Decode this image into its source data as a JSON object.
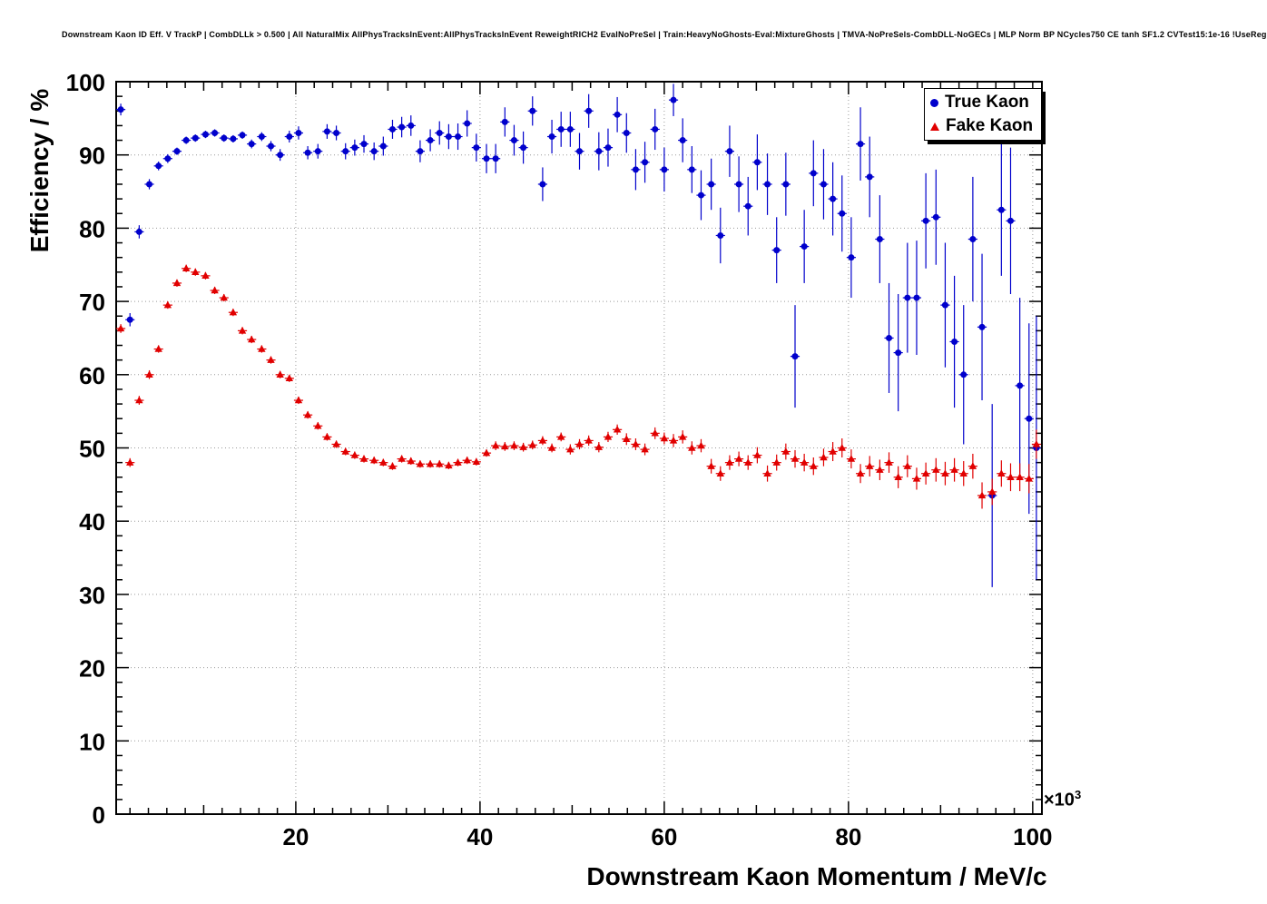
{
  "header": {
    "title": "Downstream Kaon ID Eff. V TrackP | CombDLLk > 0.500 | All NaturalMix AllPhysTracksInEvent:AllPhysTracksInEvent ReweightRICH2 EvalNoPreSel | Train:HeavyNoGhosts-Eval:MixtureGhosts | TMVA-NoPreSels-CombDLL-NoGECs | MLP Norm BP NCycles750 CE tanh SF1.2 CVTest15:1e-16 !UseReg"
  },
  "chart_data": {
    "type": "scatter",
    "xlabel": "Downstream Kaon Momentum / MeV/c",
    "ylabel": "Efficiency / %",
    "x_scale_base": "×10",
    "x_scale_exp": "3",
    "xlim": [
      0.5,
      101
    ],
    "ylim": [
      0,
      100
    ],
    "xticks": [
      20,
      40,
      60,
      80,
      100
    ],
    "yticks": [
      0,
      10,
      20,
      30,
      40,
      50,
      60,
      70,
      80,
      90,
      100
    ],
    "x_minor_step": 2,
    "y_minor_step": 2,
    "grid": true,
    "legend": {
      "position": "top-right",
      "entries": [
        {
          "label": "True Kaon",
          "marker": "circle",
          "color": "#0000cc"
        },
        {
          "label": "Fake Kaon",
          "marker": "triangle",
          "color": "#e10000"
        }
      ]
    },
    "series": [
      {
        "name": "True Kaon",
        "marker": "circle",
        "color": "#0000cc",
        "xerr": 0.5,
        "points": [
          [
            1.0,
            96.2,
            0.8
          ],
          [
            2.0,
            67.5,
            0.9
          ],
          [
            3.0,
            79.5,
            0.9
          ],
          [
            4.1,
            86.0,
            0.7
          ],
          [
            5.1,
            88.5,
            0.6
          ],
          [
            6.1,
            89.5,
            0.6
          ],
          [
            7.1,
            90.5,
            0.5
          ],
          [
            8.1,
            92.0,
            0.5
          ],
          [
            9.1,
            92.3,
            0.5
          ],
          [
            10.2,
            92.8,
            0.5
          ],
          [
            11.2,
            93.0,
            0.5
          ],
          [
            12.2,
            92.3,
            0.5
          ],
          [
            13.2,
            92.2,
            0.5
          ],
          [
            14.2,
            92.7,
            0.5
          ],
          [
            15.2,
            91.5,
            0.6
          ],
          [
            16.3,
            92.5,
            0.6
          ],
          [
            17.3,
            91.2,
            0.7
          ],
          [
            18.3,
            90.0,
            0.8
          ],
          [
            19.3,
            92.5,
            0.8
          ],
          [
            20.3,
            93.0,
            0.9
          ],
          [
            21.3,
            90.3,
            0.9
          ],
          [
            22.4,
            90.5,
            1.0
          ],
          [
            23.4,
            93.2,
            1.0
          ],
          [
            24.4,
            93.0,
            1.0
          ],
          [
            25.4,
            90.5,
            1.1
          ],
          [
            26.4,
            91.0,
            1.1
          ],
          [
            27.4,
            91.5,
            1.2
          ],
          [
            28.5,
            90.5,
            1.2
          ],
          [
            29.5,
            91.2,
            1.3
          ],
          [
            30.5,
            93.5,
            1.3
          ],
          [
            31.5,
            93.8,
            1.4
          ],
          [
            32.5,
            94.0,
            1.4
          ],
          [
            33.5,
            90.5,
            1.5
          ],
          [
            34.6,
            92.0,
            1.5
          ],
          [
            35.6,
            93.0,
            1.6
          ],
          [
            36.6,
            92.5,
            1.7
          ],
          [
            37.6,
            92.5,
            1.8
          ],
          [
            38.6,
            94.3,
            1.8
          ],
          [
            39.6,
            91.0,
            1.9
          ],
          [
            40.7,
            89.5,
            2.0
          ],
          [
            41.7,
            89.5,
            2.0
          ],
          [
            42.7,
            94.5,
            2.0
          ],
          [
            43.7,
            92.0,
            2.1
          ],
          [
            44.7,
            91.0,
            2.2
          ],
          [
            45.7,
            96.0,
            2.0
          ],
          [
            46.8,
            86.0,
            2.3
          ],
          [
            47.8,
            92.5,
            2.3
          ],
          [
            48.8,
            93.5,
            2.4
          ],
          [
            49.8,
            93.5,
            2.4
          ],
          [
            50.8,
            90.5,
            2.5
          ],
          [
            51.8,
            96.0,
            2.3
          ],
          [
            52.9,
            90.5,
            2.6
          ],
          [
            53.9,
            91.0,
            2.6
          ],
          [
            54.9,
            95.5,
            2.4
          ],
          [
            55.9,
            93.0,
            2.7
          ],
          [
            56.9,
            88.0,
            2.8
          ],
          [
            57.9,
            89.0,
            2.8
          ],
          [
            59.0,
            93.5,
            2.8
          ],
          [
            60.0,
            88.0,
            3.0
          ],
          [
            61.0,
            97.5,
            2.2
          ],
          [
            62.0,
            92.0,
            3.0
          ],
          [
            63.0,
            88.0,
            3.2
          ],
          [
            64.0,
            84.5,
            3.4
          ],
          [
            65.1,
            86.0,
            3.5
          ],
          [
            66.1,
            79.0,
            3.8
          ],
          [
            67.1,
            90.5,
            3.5
          ],
          [
            68.1,
            86.0,
            3.8
          ],
          [
            69.1,
            83.0,
            4.0
          ],
          [
            70.1,
            89.0,
            3.8
          ],
          [
            71.2,
            86.0,
            4.2
          ],
          [
            72.2,
            77.0,
            4.5
          ],
          [
            73.2,
            86.0,
            4.3
          ],
          [
            74.2,
            62.5,
            7.0
          ],
          [
            75.2,
            77.5,
            5.0
          ],
          [
            76.2,
            87.5,
            4.5
          ],
          [
            77.3,
            86.0,
            4.8
          ],
          [
            78.3,
            84.0,
            5.0
          ],
          [
            79.3,
            82.0,
            5.2
          ],
          [
            80.3,
            76.0,
            5.5
          ],
          [
            81.3,
            91.5,
            5.0
          ],
          [
            82.3,
            87.0,
            5.5
          ],
          [
            83.4,
            78.5,
            6.0
          ],
          [
            84.4,
            65.0,
            7.5
          ],
          [
            85.4,
            63.0,
            8.0
          ],
          [
            86.4,
            70.5,
            7.5
          ],
          [
            87.4,
            70.5,
            7.8
          ],
          [
            88.4,
            81.0,
            6.5
          ],
          [
            89.5,
            81.5,
            6.5
          ],
          [
            90.5,
            69.5,
            8.5
          ],
          [
            91.5,
            64.5,
            9.0
          ],
          [
            92.5,
            60.0,
            9.5
          ],
          [
            93.5,
            78.5,
            8.5
          ],
          [
            94.5,
            66.5,
            10.0
          ],
          [
            95.6,
            43.5,
            12.5
          ],
          [
            96.6,
            82.5,
            9.0
          ],
          [
            97.6,
            81.0,
            10.0
          ],
          [
            98.6,
            58.5,
            12.0
          ],
          [
            99.6,
            54.0,
            13.0
          ],
          [
            100.4,
            50.0,
            18.0
          ]
        ]
      },
      {
        "name": "Fake Kaon",
        "marker": "triangle",
        "color": "#e10000",
        "xerr": 0.5,
        "points": [
          [
            1.0,
            66.3,
            0.6
          ],
          [
            2.0,
            48.0,
            0.6
          ],
          [
            3.0,
            56.5,
            0.6
          ],
          [
            4.1,
            60.0,
            0.6
          ],
          [
            5.1,
            63.5,
            0.5
          ],
          [
            6.1,
            69.5,
            0.5
          ],
          [
            7.1,
            72.5,
            0.5
          ],
          [
            8.1,
            74.5,
            0.5
          ],
          [
            9.1,
            74.0,
            0.5
          ],
          [
            10.2,
            73.5,
            0.5
          ],
          [
            11.2,
            71.5,
            0.5
          ],
          [
            12.2,
            70.5,
            0.5
          ],
          [
            13.2,
            68.5,
            0.5
          ],
          [
            14.2,
            66.0,
            0.5
          ],
          [
            15.2,
            64.8,
            0.5
          ],
          [
            16.3,
            63.5,
            0.5
          ],
          [
            17.3,
            62.0,
            0.5
          ],
          [
            18.3,
            60.0,
            0.5
          ],
          [
            19.3,
            59.5,
            0.5
          ],
          [
            20.3,
            56.5,
            0.5
          ],
          [
            21.3,
            54.5,
            0.5
          ],
          [
            22.4,
            53.0,
            0.5
          ],
          [
            23.4,
            51.5,
            0.5
          ],
          [
            24.4,
            50.5,
            0.5
          ],
          [
            25.4,
            49.5,
            0.5
          ],
          [
            26.4,
            49.0,
            0.5
          ],
          [
            27.4,
            48.5,
            0.5
          ],
          [
            28.5,
            48.3,
            0.5
          ],
          [
            29.5,
            48.0,
            0.5
          ],
          [
            30.5,
            47.5,
            0.5
          ],
          [
            31.5,
            48.5,
            0.5
          ],
          [
            32.5,
            48.2,
            0.5
          ],
          [
            33.5,
            47.8,
            0.5
          ],
          [
            34.6,
            47.8,
            0.5
          ],
          [
            35.6,
            47.8,
            0.5
          ],
          [
            36.6,
            47.6,
            0.5
          ],
          [
            37.6,
            48.0,
            0.5
          ],
          [
            38.6,
            48.3,
            0.5
          ],
          [
            39.6,
            48.1,
            0.5
          ],
          [
            40.7,
            49.3,
            0.5
          ],
          [
            41.7,
            50.3,
            0.6
          ],
          [
            42.7,
            50.2,
            0.6
          ],
          [
            43.7,
            50.3,
            0.6
          ],
          [
            44.7,
            50.1,
            0.6
          ],
          [
            45.7,
            50.4,
            0.6
          ],
          [
            46.8,
            51.0,
            0.6
          ],
          [
            47.8,
            50.0,
            0.6
          ],
          [
            48.8,
            51.5,
            0.6
          ],
          [
            49.8,
            49.8,
            0.7
          ],
          [
            50.8,
            50.5,
            0.7
          ],
          [
            51.8,
            51.0,
            0.7
          ],
          [
            52.9,
            50.1,
            0.7
          ],
          [
            53.9,
            51.5,
            0.7
          ],
          [
            54.9,
            52.5,
            0.7
          ],
          [
            55.9,
            51.2,
            0.8
          ],
          [
            56.9,
            50.5,
            0.8
          ],
          [
            57.9,
            49.8,
            0.8
          ],
          [
            59.0,
            52.0,
            0.8
          ],
          [
            60.0,
            51.3,
            0.8
          ],
          [
            61.0,
            51.0,
            0.9
          ],
          [
            62.0,
            51.5,
            0.9
          ],
          [
            63.0,
            50.0,
            0.9
          ],
          [
            64.0,
            50.3,
            0.9
          ],
          [
            65.1,
            47.5,
            1.0
          ],
          [
            66.1,
            46.5,
            1.0
          ],
          [
            67.1,
            48.0,
            1.0
          ],
          [
            68.1,
            48.5,
            1.0
          ],
          [
            69.1,
            48.0,
            1.0
          ],
          [
            70.1,
            49.0,
            1.1
          ],
          [
            71.2,
            46.5,
            1.1
          ],
          [
            72.2,
            48.0,
            1.1
          ],
          [
            73.2,
            49.5,
            1.1
          ],
          [
            74.2,
            48.5,
            1.2
          ],
          [
            75.2,
            48.0,
            1.2
          ],
          [
            76.2,
            47.5,
            1.2
          ],
          [
            77.3,
            48.7,
            1.2
          ],
          [
            78.3,
            49.5,
            1.3
          ],
          [
            79.3,
            50.0,
            1.3
          ],
          [
            80.3,
            48.5,
            1.3
          ],
          [
            81.3,
            46.5,
            1.3
          ],
          [
            82.3,
            47.5,
            1.4
          ],
          [
            83.4,
            47.0,
            1.4
          ],
          [
            84.4,
            48.0,
            1.4
          ],
          [
            85.4,
            46.0,
            1.5
          ],
          [
            86.4,
            47.5,
            1.5
          ],
          [
            87.4,
            45.8,
            1.5
          ],
          [
            88.4,
            46.5,
            1.5
          ],
          [
            89.5,
            47.0,
            1.6
          ],
          [
            90.5,
            46.5,
            1.6
          ],
          [
            91.5,
            47.0,
            1.6
          ],
          [
            92.5,
            46.5,
            1.7
          ],
          [
            93.5,
            47.5,
            1.7
          ],
          [
            94.5,
            43.5,
            1.8
          ],
          [
            95.6,
            44.0,
            1.8
          ],
          [
            96.6,
            46.5,
            1.8
          ],
          [
            97.6,
            46.0,
            1.9
          ],
          [
            98.6,
            46.0,
            1.9
          ],
          [
            99.6,
            45.8,
            2.0
          ],
          [
            100.4,
            50.5,
            2.0
          ]
        ]
      }
    ]
  }
}
